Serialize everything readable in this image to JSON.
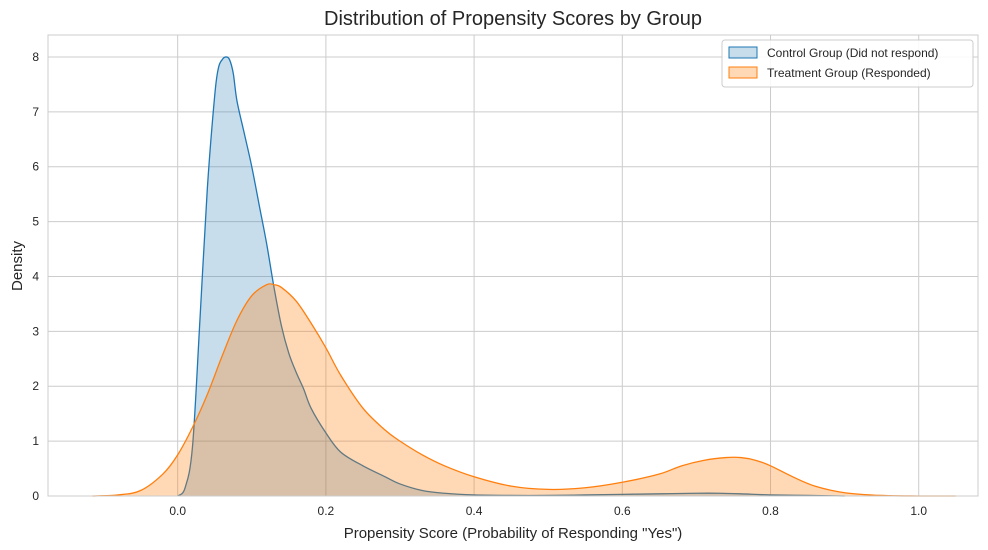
{
  "chart_data": {
    "type": "area",
    "title": "Distribution of Propensity Scores by Group",
    "xlabel": "Propensity Score (Probability of Responding \"Yes\")",
    "ylabel": "Density",
    "xlim": [
      -0.175,
      1.08
    ],
    "ylim": [
      0,
      8.4
    ],
    "xticks": [
      0.0,
      0.2,
      0.4,
      0.6,
      0.8,
      1.0
    ],
    "xtick_labels": [
      "0.0",
      "0.2",
      "0.4",
      "0.6",
      "0.8",
      "1.0"
    ],
    "yticks": [
      0,
      1,
      2,
      3,
      4,
      5,
      6,
      7,
      8
    ],
    "ytick_labels": [
      "0",
      "1",
      "2",
      "3",
      "4",
      "5",
      "6",
      "7",
      "8"
    ],
    "grid": true,
    "legend_position": "top-right",
    "series": [
      {
        "name": "Control Group (Did not respond)",
        "color": "#1f77b4",
        "fill_opacity": 0.25,
        "x": [
          0.0,
          0.01,
          0.02,
          0.03,
          0.04,
          0.05,
          0.055,
          0.06,
          0.065,
          0.07,
          0.075,
          0.08,
          0.09,
          0.1,
          0.11,
          0.12,
          0.13,
          0.14,
          0.15,
          0.16,
          0.17,
          0.18,
          0.2,
          0.22,
          0.25,
          0.28,
          0.3,
          0.33,
          0.36,
          0.4,
          0.45,
          0.5,
          0.55,
          0.6,
          0.65,
          0.7,
          0.73,
          0.76,
          0.8,
          0.85,
          0.9
        ],
        "y": [
          0.0,
          0.15,
          0.9,
          3.2,
          5.6,
          7.3,
          7.8,
          7.95,
          8.0,
          7.95,
          7.7,
          7.2,
          6.6,
          6.0,
          5.3,
          4.6,
          3.8,
          3.1,
          2.6,
          2.25,
          1.95,
          1.6,
          1.15,
          0.8,
          0.55,
          0.35,
          0.22,
          0.1,
          0.05,
          0.02,
          0.01,
          0.01,
          0.02,
          0.03,
          0.04,
          0.05,
          0.05,
          0.04,
          0.02,
          0.01,
          0.0
        ]
      },
      {
        "name": "Treatment Group (Responded)",
        "color": "#ff7f0e",
        "fill_opacity": 0.3,
        "x": [
          -0.115,
          -0.08,
          -0.05,
          -0.02,
          0.0,
          0.02,
          0.04,
          0.06,
          0.08,
          0.1,
          0.12,
          0.13,
          0.14,
          0.16,
          0.18,
          0.2,
          0.22,
          0.25,
          0.28,
          0.3,
          0.33,
          0.36,
          0.4,
          0.45,
          0.5,
          0.55,
          0.6,
          0.65,
          0.68,
          0.71,
          0.74,
          0.76,
          0.78,
          0.8,
          0.83,
          0.86,
          0.9,
          0.95,
          1.0,
          1.05
        ],
        "y": [
          0.0,
          0.02,
          0.1,
          0.4,
          0.75,
          1.25,
          1.85,
          2.55,
          3.2,
          3.65,
          3.85,
          3.85,
          3.8,
          3.55,
          3.15,
          2.7,
          2.2,
          1.6,
          1.2,
          1.0,
          0.75,
          0.55,
          0.35,
          0.18,
          0.12,
          0.15,
          0.25,
          0.4,
          0.55,
          0.65,
          0.7,
          0.7,
          0.65,
          0.55,
          0.35,
          0.18,
          0.06,
          0.01,
          0.0,
          0.0
        ]
      }
    ]
  }
}
